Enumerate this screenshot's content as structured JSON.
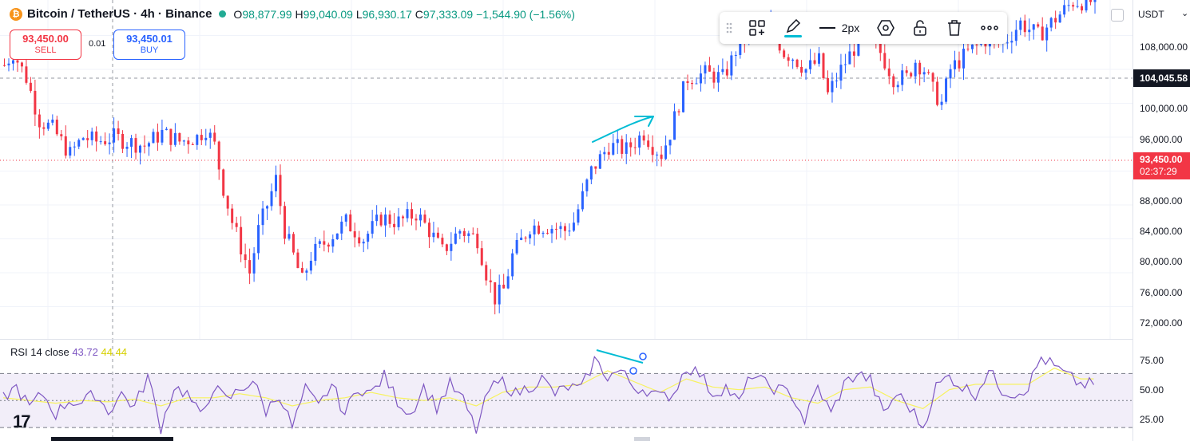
{
  "legend": {
    "coin_glyph": "₿",
    "symbol": "Bitcoin / TetherUS · 4h · Binance",
    "open_label": "O",
    "open": "98,877.99",
    "high_label": "H",
    "high": "99,040.09",
    "low_label": "L",
    "low": "96,930.17",
    "close_label": "C",
    "close": "97,333.09",
    "change": "−1,544.90 (−1.56%)"
  },
  "trade": {
    "sell_price": "93,450.00",
    "sell_label": "SELL",
    "spread": "0.01",
    "buy_price": "93,450.01",
    "buy_label": "BUY"
  },
  "toolbar": {
    "drag_icon": "drag-handle-icon",
    "templates_icon": "templates-icon",
    "pencil_icon": "pencil-icon",
    "line_width_label": "2px",
    "settings_icon": "settings-icon",
    "lock_icon": "lock-icon",
    "delete_icon": "trash-icon",
    "more_icon": "more-icon"
  },
  "price_axis": {
    "currency": "USDT",
    "labels": [
      "108,000.00",
      "100,000.00",
      "96,000.00",
      "88,000.00",
      "84,000.00",
      "80,000.00",
      "76,000.00",
      "72,000.00"
    ],
    "crosshair_price": "104,045.58",
    "last_price": "93,450.00",
    "countdown": "02:37:29"
  },
  "rsi": {
    "title": "RSI 14 close",
    "value": "43.72",
    "ma_value": "44.44",
    "labels": [
      "75.00",
      "50.00",
      "25.00"
    ]
  },
  "colors": {
    "up": "#089981",
    "down": "#f23645",
    "candle_up": "#2962ff",
    "candle_down": "#f23645",
    "rsi_line": "#7e57c2",
    "rsi_ma": "#f7f25f",
    "drawing": "#00bcd4"
  },
  "chart_data": {
    "type": "candlestick",
    "y_range": [
      72000,
      112000
    ],
    "rsi_range": [
      20,
      95
    ],
    "close_path": [
      [
        0,
        104500
      ],
      [
        2,
        106000
      ],
      [
        5,
        103000
      ],
      [
        8,
        98000
      ],
      [
        11,
        97000
      ],
      [
        15,
        94000
      ],
      [
        18,
        96000
      ],
      [
        21,
        95500
      ],
      [
        25,
        96000
      ],
      [
        28,
        95500
      ],
      [
        32,
        95000
      ],
      [
        36,
        96500
      ],
      [
        40,
        95500
      ],
      [
        44,
        96000
      ],
      [
        46,
        97000
      ],
      [
        48,
        95000
      ],
      [
        50,
        90000
      ],
      [
        52,
        86000
      ],
      [
        54,
        83000
      ],
      [
        56,
        80000
      ],
      [
        58,
        85000
      ],
      [
        60,
        88000
      ],
      [
        62,
        91000
      ],
      [
        64,
        85000
      ],
      [
        66,
        82000
      ],
      [
        68,
        79000
      ],
      [
        70,
        82000
      ],
      [
        74,
        84000
      ],
      [
        78,
        86000
      ],
      [
        82,
        84000
      ],
      [
        86,
        86500
      ],
      [
        90,
        86000
      ],
      [
        94,
        87000
      ],
      [
        97,
        85000
      ],
      [
        100,
        82500
      ],
      [
        104,
        85000
      ],
      [
        108,
        84000
      ],
      [
        110,
        80000
      ],
      [
        112,
        77000
      ],
      [
        114,
        78000
      ],
      [
        116,
        82000
      ],
      [
        120,
        85500
      ],
      [
        124,
        85500
      ],
      [
        128,
        85000
      ],
      [
        130,
        86000
      ],
      [
        132,
        89000
      ],
      [
        134,
        92000
      ],
      [
        138,
        95000
      ],
      [
        142,
        94500
      ],
      [
        146,
        96500
      ],
      [
        148,
        95000
      ],
      [
        150,
        94000
      ],
      [
        152,
        96500
      ],
      [
        154,
        100000
      ],
      [
        156,
        103000
      ],
      [
        160,
        103500
      ],
      [
        164,
        103000
      ],
      [
        166,
        105000
      ],
      [
        168,
        107500
      ],
      [
        172,
        108500
      ],
      [
        175,
        109000
      ],
      [
        178,
        106000
      ],
      [
        180,
        105500
      ],
      [
        183,
        104000
      ],
      [
        186,
        105000
      ],
      [
        188,
        101000
      ],
      [
        191,
        104000
      ],
      [
        194,
        106500
      ],
      [
        197,
        108500
      ],
      [
        200,
        106000
      ],
      [
        203,
        103000
      ],
      [
        206,
        103000
      ],
      [
        208,
        105000
      ],
      [
        210,
        104000
      ],
      [
        212,
        101500
      ],
      [
        214,
        100000
      ],
      [
        216,
        104000
      ],
      [
        220,
        106000
      ],
      [
        224,
        107500
      ],
      [
        228,
        107000
      ],
      [
        232,
        109500
      ],
      [
        236,
        108000
      ],
      [
        240,
        110000
      ],
      [
        244,
        112000
      ]
    ],
    "rsi_path": [
      [
        0,
        52
      ],
      [
        3,
        60
      ],
      [
        6,
        45
      ],
      [
        9,
        55
      ],
      [
        12,
        40
      ],
      [
        15,
        50
      ],
      [
        18,
        48
      ],
      [
        21,
        55
      ],
      [
        24,
        42
      ],
      [
        27,
        55
      ],
      [
        30,
        45
      ],
      [
        33,
        68
      ],
      [
        36,
        30
      ],
      [
        39,
        60
      ],
      [
        42,
        55
      ],
      [
        45,
        38
      ],
      [
        48,
        60
      ],
      [
        51,
        50
      ],
      [
        54,
        58
      ],
      [
        57,
        65
      ],
      [
        60,
        42
      ],
      [
        63,
        55
      ],
      [
        66,
        30
      ],
      [
        69,
        58
      ],
      [
        72,
        45
      ],
      [
        75,
        62
      ],
      [
        78,
        40
      ],
      [
        81,
        60
      ],
      [
        84,
        55
      ],
      [
        87,
        68
      ],
      [
        90,
        50
      ],
      [
        93,
        40
      ],
      [
        96,
        60
      ],
      [
        99,
        45
      ],
      [
        102,
        62
      ],
      [
        105,
        50
      ],
      [
        108,
        28
      ],
      [
        111,
        58
      ],
      [
        114,
        64
      ],
      [
        117,
        55
      ],
      [
        120,
        60
      ],
      [
        123,
        66
      ],
      [
        126,
        55
      ],
      [
        129,
        60
      ],
      [
        132,
        58
      ],
      [
        135,
        80
      ],
      [
        138,
        68
      ],
      [
        141,
        72
      ],
      [
        144,
        60
      ],
      [
        147,
        58
      ],
      [
        150,
        52
      ],
      [
        153,
        55
      ],
      [
        156,
        75
      ],
      [
        159,
        70
      ],
      [
        162,
        55
      ],
      [
        165,
        60
      ],
      [
        168,
        48
      ],
      [
        171,
        70
      ],
      [
        174,
        62
      ],
      [
        177,
        58
      ],
      [
        180,
        55
      ],
      [
        183,
        35
      ],
      [
        186,
        60
      ],
      [
        189,
        40
      ],
      [
        192,
        62
      ],
      [
        195,
        70
      ],
      [
        198,
        65
      ],
      [
        201,
        40
      ],
      [
        204,
        55
      ],
      [
        207,
        45
      ],
      [
        210,
        30
      ],
      [
        213,
        60
      ],
      [
        216,
        68
      ],
      [
        219,
        60
      ],
      [
        222,
        55
      ],
      [
        225,
        72
      ],
      [
        228,
        58
      ],
      [
        231,
        55
      ],
      [
        234,
        60
      ],
      [
        237,
        82
      ],
      [
        240,
        75
      ],
      [
        243,
        68
      ],
      [
        246,
        62
      ]
    ],
    "rsi_ma_path": [
      [
        0,
        52
      ],
      [
        6,
        50
      ],
      [
        12,
        48
      ],
      [
        18,
        50
      ],
      [
        24,
        49
      ],
      [
        30,
        51
      ],
      [
        36,
        46
      ],
      [
        42,
        52
      ],
      [
        48,
        52
      ],
      [
        54,
        55
      ],
      [
        60,
        52
      ],
      [
        66,
        46
      ],
      [
        72,
        50
      ],
      [
        78,
        52
      ],
      [
        84,
        56
      ],
      [
        90,
        52
      ],
      [
        96,
        50
      ],
      [
        102,
        52
      ],
      [
        108,
        46
      ],
      [
        114,
        56
      ],
      [
        120,
        60
      ],
      [
        126,
        60
      ],
      [
        132,
        62
      ],
      [
        138,
        72
      ],
      [
        144,
        64
      ],
      [
        150,
        56
      ],
      [
        156,
        66
      ],
      [
        162,
        60
      ],
      [
        168,
        58
      ],
      [
        174,
        60
      ],
      [
        180,
        52
      ],
      [
        186,
        48
      ],
      [
        192,
        58
      ],
      [
        198,
        60
      ],
      [
        204,
        50
      ],
      [
        210,
        44
      ],
      [
        216,
        58
      ],
      [
        222,
        62
      ],
      [
        228,
        62
      ],
      [
        234,
        62
      ],
      [
        240,
        74
      ],
      [
        246,
        66
      ]
    ]
  }
}
